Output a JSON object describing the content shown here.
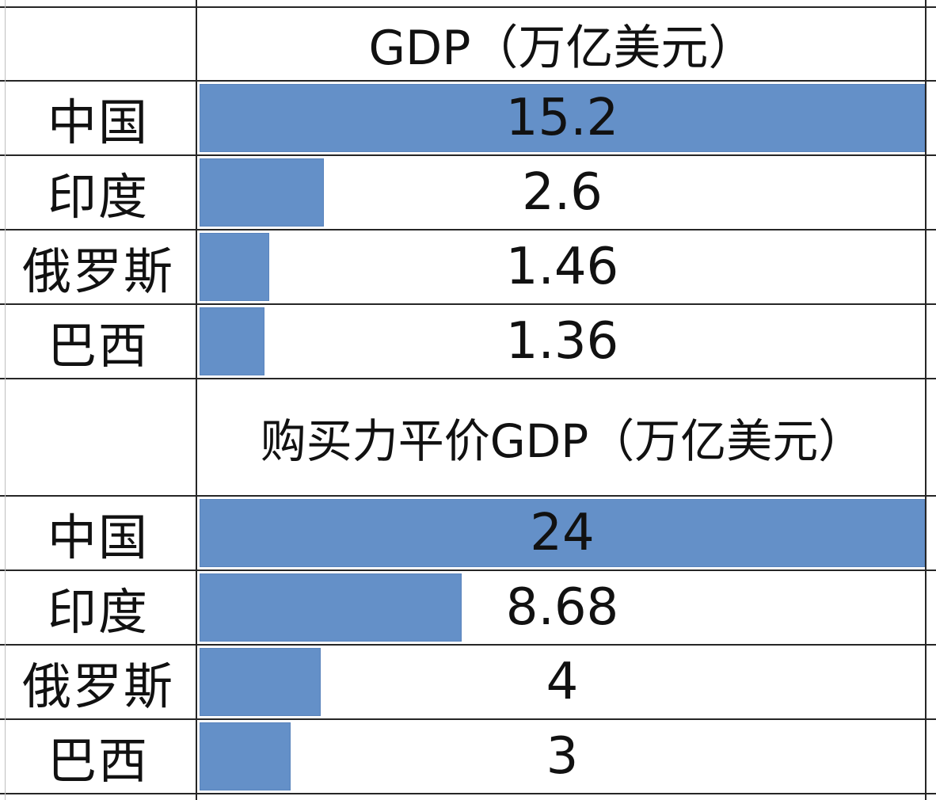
{
  "tables": [
    {
      "header": "GDP（万亿美元）",
      "rows": [
        {
          "label": "中国",
          "value": "15.2"
        },
        {
          "label": "印度",
          "value": "2.6"
        },
        {
          "label": "俄罗斯",
          "value": "1.46"
        },
        {
          "label": "巴西",
          "value": "1.36"
        }
      ]
    },
    {
      "header": "购买力平价GDP（万亿美元）",
      "rows": [
        {
          "label": "中国",
          "value": "24"
        },
        {
          "label": "印度",
          "value": "8.68"
        },
        {
          "label": "俄罗斯",
          "value": "4"
        },
        {
          "label": "巴西",
          "value": "3"
        }
      ]
    }
  ],
  "chart_data": [
    {
      "type": "bar",
      "title": "GDP（万亿美元）",
      "categories": [
        "中国",
        "印度",
        "俄罗斯",
        "巴西"
      ],
      "values": [
        15.2,
        2.6,
        1.46,
        1.36
      ],
      "orientation": "horizontal",
      "bar_color": "#6490c8",
      "grid": true,
      "legend": "none"
    },
    {
      "type": "bar",
      "title": "购买力平价GDP（万亿美元）",
      "categories": [
        "中国",
        "印度",
        "俄罗斯",
        "巴西"
      ],
      "values": [
        24,
        8.68,
        4,
        3
      ],
      "orientation": "horizontal",
      "bar_color": "#6490c8",
      "grid": true,
      "legend": "none"
    }
  ]
}
